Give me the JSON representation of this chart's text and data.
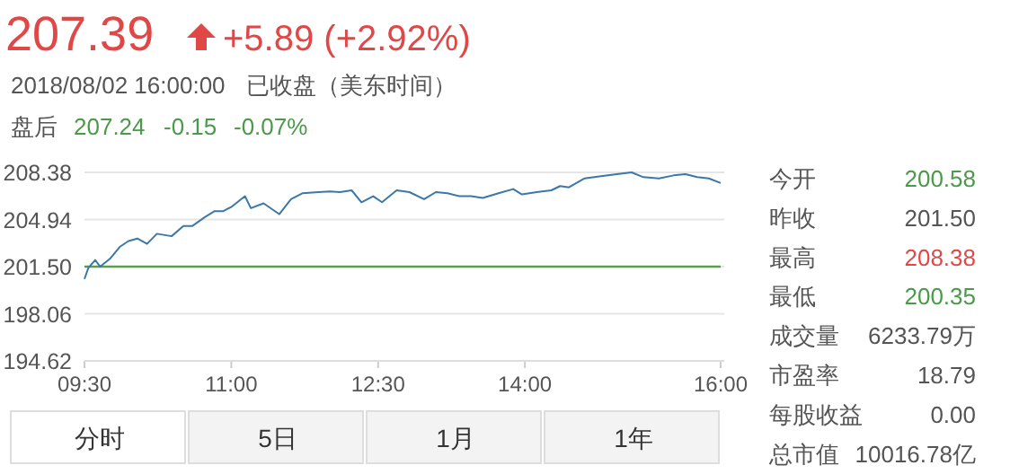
{
  "chart_data": [
    {
      "type": "line",
      "title": "207.39",
      "subtitle": "+5.89 (+2.92%)",
      "annotations": [
        "2018/08/02 16:00:00",
        "已收盘（美东时间）",
        "盘后",
        "207.24",
        "-0.15",
        "-0.07%",
        "分时",
        "5日",
        "1月",
        "1年"
      ],
      "x": [
        9.5,
        9.54,
        9.61,
        9.66,
        9.76,
        9.86,
        9.95,
        10.04,
        10.14,
        10.24,
        10.39,
        10.51,
        10.6,
        10.73,
        10.83,
        10.92,
        11.01,
        11.14,
        11.2,
        11.33,
        11.49,
        11.61,
        11.73,
        11.89,
        12.01,
        12.11,
        12.23,
        12.33,
        12.45,
        12.54,
        12.69,
        12.82,
        12.97,
        13.09,
        13.21,
        13.33,
        13.45,
        13.57,
        13.73,
        13.88,
        13.97,
        14.12,
        14.27,
        14.36,
        14.45,
        14.61,
        14.76,
        14.94,
        15.09,
        15.21,
        15.37,
        15.52,
        15.64,
        15.76,
        15.88,
        16.0
      ],
      "series": [
        {
          "color": "#3b78a8",
          "values": [
            200.6,
            201.41,
            201.98,
            201.5,
            202.07,
            202.94,
            203.37,
            203.55,
            203.16,
            203.9,
            203.72,
            204.46,
            204.46,
            205.11,
            205.55,
            205.55,
            205.9,
            206.64,
            205.77,
            206.12,
            205.33,
            206.42,
            206.86,
            206.94,
            206.99,
            206.94,
            207.07,
            206.2,
            206.64,
            206.2,
            207.07,
            206.94,
            206.42,
            206.94,
            206.86,
            206.64,
            206.64,
            206.51,
            206.86,
            207.16,
            206.77,
            206.94,
            207.07,
            207.38,
            207.29,
            207.94,
            208.08,
            208.25,
            208.38,
            208.03,
            207.94,
            208.16,
            208.25,
            208.03,
            207.94,
            207.6
          ]
        }
      ],
      "xlim": [
        9.5,
        16
      ],
      "xticks": [
        {
          "value": 9.5,
          "label": "09:30"
        },
        {
          "value": 11,
          "label": "11:00"
        },
        {
          "value": 12.5,
          "label": "12:30"
        },
        {
          "value": 14,
          "label": "14:00"
        },
        {
          "value": 16,
          "label": "16:00"
        }
      ],
      "ylim": [
        194.62,
        208.38
      ],
      "yticks": [
        208.38,
        204.94,
        {
          "value": 201.5,
          "label": "201.50"
        },
        198.06,
        194.62
      ],
      "ref_lines": [
        {
          "axis": "y",
          "value": 201.5,
          "color": "#5a9e4a"
        }
      ],
      "grid": "y"
    },
    {
      "type": "other",
      "annotations": [
        "今开",
        "200.58",
        "昨收",
        "201.50",
        "最高",
        "208.38",
        "最低",
        "200.35",
        "成交量",
        "6233.79万",
        "市盈率",
        "18.79",
        "每股收益",
        "0.00",
        "总市值",
        "10016.78亿"
      ]
    }
  ]
}
